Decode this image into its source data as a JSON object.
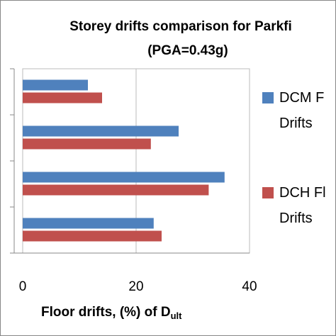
{
  "chart_data": {
    "type": "hbar",
    "title": "Storey drifts comparison for Parkfi",
    "subtitle": "(PGA=0.43g)",
    "x_label": "Floor drifts, (%) of D",
    "x_label_sub": "ult",
    "categories": [
      null,
      null,
      null,
      null
    ],
    "series": [
      {
        "name": "DCM F Drifts",
        "color": "#4f81bd",
        "values": [
          11.5,
          27.5,
          35.6,
          23.1
        ]
      },
      {
        "name": "DCH Fl Drifts",
        "color": "#c0504d",
        "values": [
          14,
          22.6,
          32.8,
          24.5
        ]
      }
    ],
    "xlim": [
      0,
      40
    ],
    "xticks": [
      0,
      20,
      40
    ],
    "grid": true
  }
}
